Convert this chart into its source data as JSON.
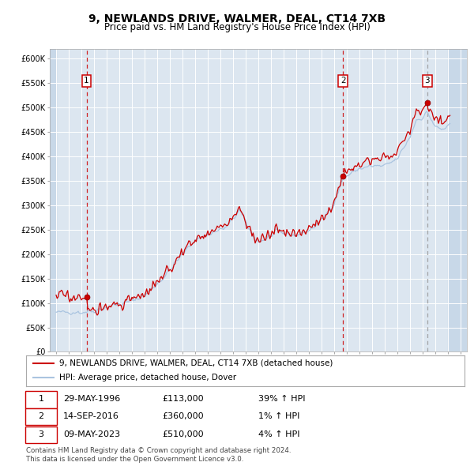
{
  "title": "9, NEWLANDS DRIVE, WALMER, DEAL, CT14 7XB",
  "subtitle": "Price paid vs. HM Land Registry's House Price Index (HPI)",
  "title_fontsize": 10,
  "subtitle_fontsize": 8.5,
  "hpi_color": "#aac4e0",
  "price_color": "#cc0000",
  "plot_bg_color": "#dce6f0",
  "grid_color": "#ffffff",
  "ylim": [
    0,
    620000
  ],
  "yticks": [
    0,
    50000,
    100000,
    150000,
    200000,
    250000,
    300000,
    350000,
    400000,
    450000,
    500000,
    550000,
    600000
  ],
  "ytick_labels": [
    "£0",
    "£50K",
    "£100K",
    "£150K",
    "£200K",
    "£250K",
    "£300K",
    "£350K",
    "£400K",
    "£450K",
    "£500K",
    "£550K",
    "£600K"
  ],
  "xlim_start": 1993.5,
  "xlim_end": 2026.5,
  "xticks": [
    1994,
    1995,
    1996,
    1997,
    1998,
    1999,
    2000,
    2001,
    2002,
    2003,
    2004,
    2005,
    2006,
    2007,
    2008,
    2009,
    2010,
    2011,
    2012,
    2013,
    2014,
    2015,
    2016,
    2017,
    2018,
    2019,
    2020,
    2021,
    2022,
    2023,
    2024,
    2025,
    2026
  ],
  "sale_dates": [
    1996.41,
    2016.71,
    2023.36
  ],
  "sale_prices": [
    113000,
    360000,
    510000
  ],
  "sale_labels": [
    "1",
    "2",
    "3"
  ],
  "sale_vline_colors": [
    "#cc0000",
    "#cc0000",
    "#999999"
  ],
  "legend_line1": "9, NEWLANDS DRIVE, WALMER, DEAL, CT14 7XB (detached house)",
  "legend_line2": "HPI: Average price, detached house, Dover",
  "table_rows": [
    [
      "1",
      "29-MAY-1996",
      "£113,000",
      "39% ↑ HPI"
    ],
    [
      "2",
      "14-SEP-2016",
      "£360,000",
      "1% ↑ HPI"
    ],
    [
      "3",
      "09-MAY-2023",
      "£510,000",
      "4% ↑ HPI"
    ]
  ],
  "footnote": "Contains HM Land Registry data © Crown copyright and database right 2024.\nThis data is licensed under the Open Government Licence v3.0.",
  "hatch_color": "#c8d8e8"
}
